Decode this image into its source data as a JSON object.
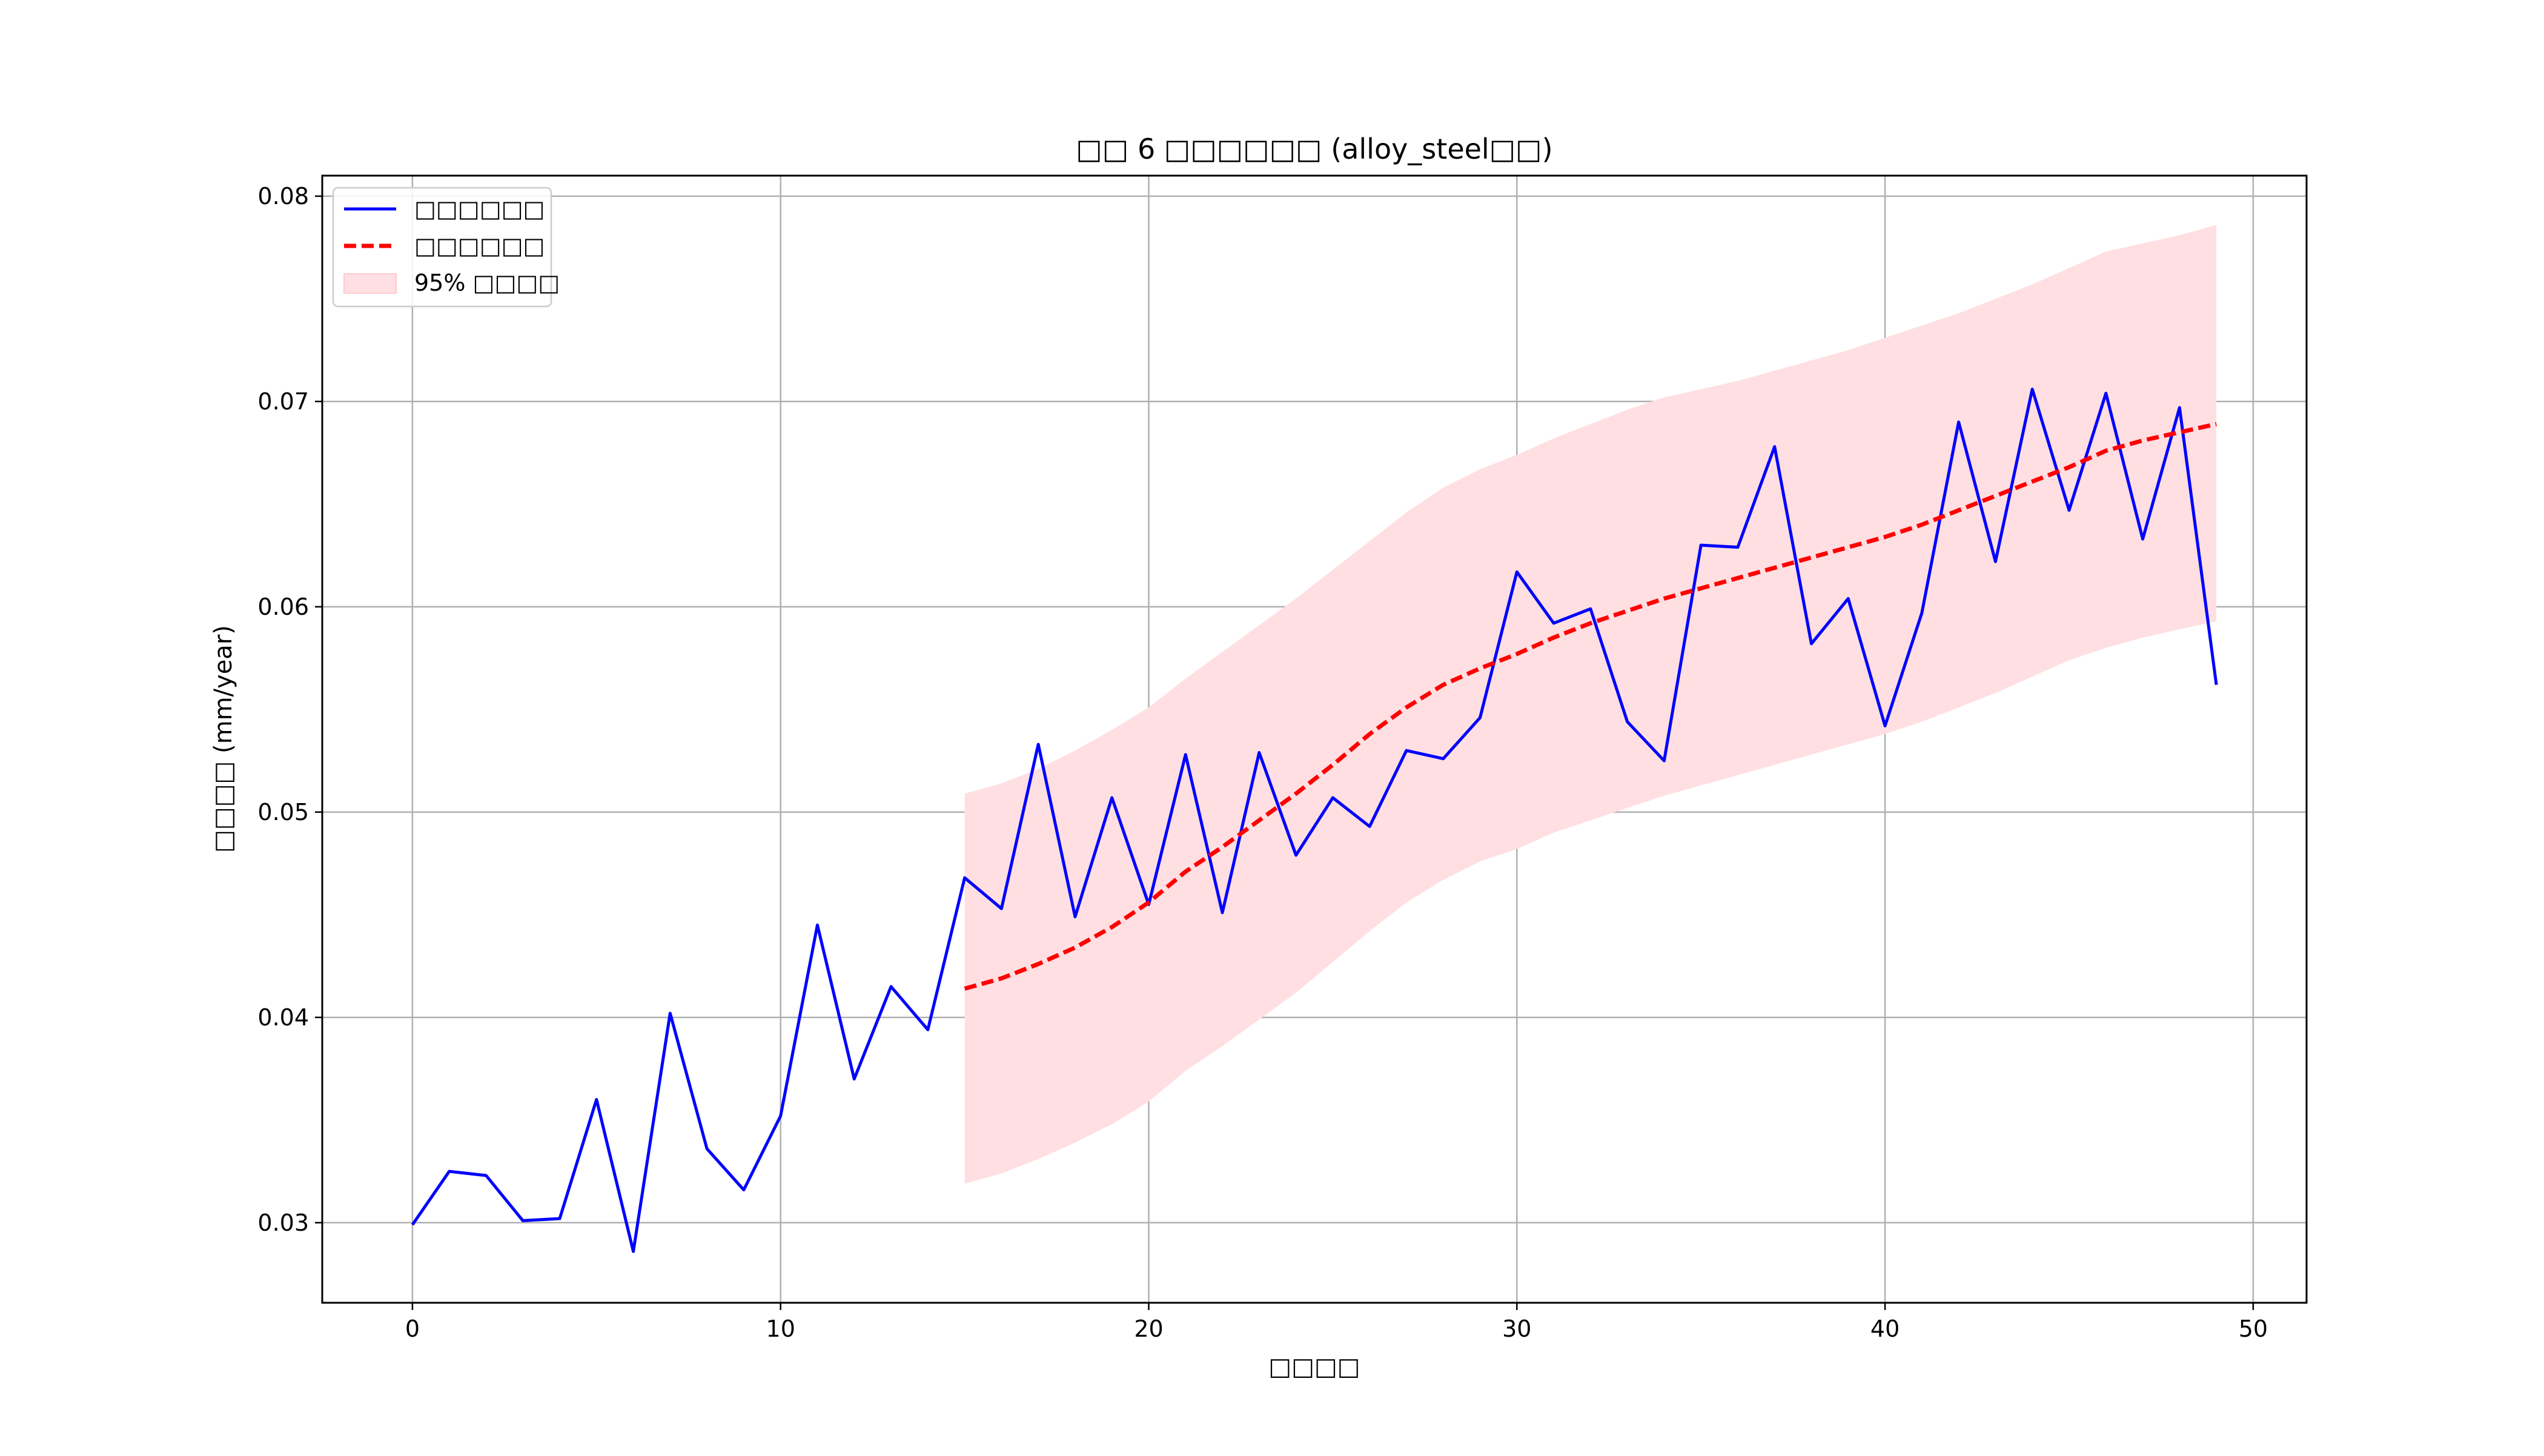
{
  "chart_data": {
    "type": "line",
    "title": "□□ 6 □□□□□□ (alloy_steel□□)",
    "xlabel": "□□□□",
    "ylabel": "□□□□ (mm/year)",
    "xlim": [
      -2.45,
      51.45
    ],
    "ylim": [
      0.0261,
      0.081
    ],
    "xticks": [
      0,
      10,
      20,
      30,
      40,
      50
    ],
    "yticks": [
      0.03,
      0.04,
      0.05,
      0.06,
      0.07,
      0.08
    ],
    "xtick_labels": [
      "0",
      "10",
      "20",
      "30",
      "40",
      "50"
    ],
    "ytick_labels": [
      "0.03",
      "0.04",
      "0.05",
      "0.06",
      "0.07",
      "0.08"
    ],
    "grid": true,
    "legend_position": "top-left",
    "series": [
      {
        "name": "□□□□□□",
        "style": "solid",
        "color": "#0000ff",
        "x": [
          0,
          1,
          2,
          3,
          4,
          5,
          6,
          7,
          8,
          9,
          10,
          11,
          12,
          13,
          14,
          15,
          16,
          17,
          18,
          19,
          20,
          21,
          22,
          23,
          24,
          25,
          26,
          27,
          28,
          29,
          30,
          31,
          32,
          33,
          34,
          35,
          36,
          37,
          38,
          39,
          40,
          41,
          42,
          43,
          44,
          45,
          46,
          47,
          48,
          49
        ],
        "values": [
          0.0299,
          0.0325,
          0.0323,
          0.0301,
          0.0302,
          0.036,
          0.0286,
          0.0402,
          0.0336,
          0.0316,
          0.0352,
          0.0445,
          0.037,
          0.0415,
          0.0394,
          0.0468,
          0.0453,
          0.0533,
          0.0449,
          0.0507,
          0.0455,
          0.0528,
          0.0451,
          0.0529,
          0.0479,
          0.0507,
          0.0493,
          0.053,
          0.0526,
          0.0546,
          0.0617,
          0.0592,
          0.0599,
          0.0544,
          0.0525,
          0.063,
          0.0629,
          0.0678,
          0.0582,
          0.0604,
          0.0542,
          0.0597,
          0.069,
          0.0622,
          0.0706,
          0.0647,
          0.0704,
          0.0633,
          0.0697,
          0.0562
        ]
      },
      {
        "name": "□□□□□□",
        "style": "dashed",
        "color": "#ff0000",
        "x": [
          15,
          16,
          17,
          18,
          19,
          20,
          21,
          22,
          23,
          24,
          25,
          26,
          27,
          28,
          29,
          30,
          31,
          32,
          33,
          34,
          35,
          36,
          37,
          38,
          39,
          40,
          41,
          42,
          43,
          44,
          45,
          46,
          47,
          48,
          49
        ],
        "values": [
          0.0414,
          0.0419,
          0.0426,
          0.0434,
          0.0444,
          0.0456,
          0.0471,
          0.0483,
          0.0496,
          0.0509,
          0.0523,
          0.0538,
          0.0551,
          0.0562,
          0.057,
          0.0577,
          0.0585,
          0.0592,
          0.0598,
          0.0604,
          0.0609,
          0.0614,
          0.0619,
          0.0624,
          0.0629,
          0.0634,
          0.064,
          0.0647,
          0.0654,
          0.0661,
          0.0668,
          0.0676,
          0.0681,
          0.0685,
          0.0689
        ]
      }
    ],
    "band": {
      "name": "95% □□□□",
      "color": "#ffdfe2",
      "x": [
        15,
        16,
        17,
        18,
        19,
        20,
        21,
        22,
        23,
        24,
        25,
        26,
        27,
        28,
        29,
        30,
        31,
        32,
        33,
        34,
        35,
        36,
        37,
        38,
        39,
        40,
        41,
        42,
        43,
        44,
        45,
        46,
        47,
        48,
        49
      ],
      "upper": [
        0.0509,
        0.0514,
        0.0521,
        0.053,
        0.054,
        0.0551,
        0.0565,
        0.0578,
        0.0591,
        0.0604,
        0.0618,
        0.0632,
        0.0646,
        0.0658,
        0.0667,
        0.0674,
        0.0682,
        0.0689,
        0.0696,
        0.0702,
        0.0706,
        0.071,
        0.0715,
        0.072,
        0.0725,
        0.0731,
        0.0737,
        0.0743,
        0.075,
        0.0757,
        0.0765,
        0.0773,
        0.0777,
        0.0781,
        0.0786
      ],
      "lower": [
        0.0319,
        0.0324,
        0.0331,
        0.0339,
        0.0348,
        0.0359,
        0.0374,
        0.0386,
        0.0399,
        0.0412,
        0.0427,
        0.0442,
        0.0456,
        0.0467,
        0.0476,
        0.0482,
        0.049,
        0.0496,
        0.0502,
        0.0508,
        0.0513,
        0.0518,
        0.0523,
        0.0528,
        0.0533,
        0.0538,
        0.0544,
        0.0551,
        0.0558,
        0.0566,
        0.0574,
        0.058,
        0.0585,
        0.0589,
        0.0593
      ]
    }
  }
}
